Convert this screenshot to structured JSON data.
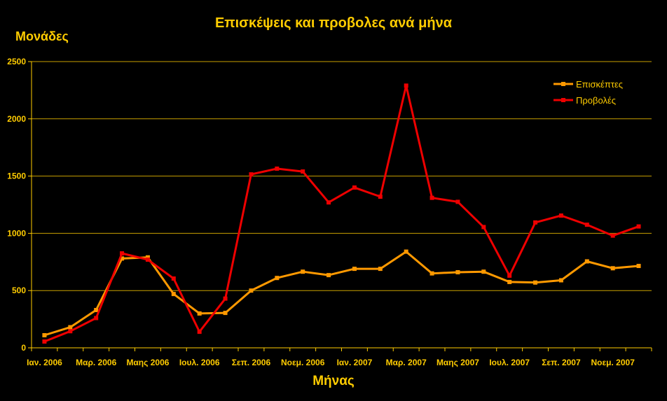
{
  "chart_data": {
    "type": "line",
    "title": "Επισκέψεις και προβολες ανά μήνα",
    "ylabel": "Μονάδες",
    "xlabel": "Μήνας",
    "ylim": [
      0,
      2500
    ],
    "yticks": [
      0,
      500,
      1000,
      1500,
      2000,
      2500
    ],
    "grid": true,
    "legend_position": "top-right",
    "x_tick_labels": [
      "Ιαν. 2006",
      "Μαρ. 2006",
      "Μαης 2006",
      "Ιουλ. 2006",
      "Σεπ. 2006",
      "Νοεμ. 2006",
      "Ιαν. 2007",
      "Μαρ. 2007",
      "Μαης 2007",
      "Ιουλ. 2007",
      "Σεπ. 2007",
      "Νοεμ. 2007"
    ],
    "point_count": 24,
    "series": [
      {
        "name": "Επισκέπτες",
        "color": "#FF9900",
        "values": [
          110,
          180,
          330,
          780,
          790,
          470,
          300,
          305,
          500,
          610,
          665,
          635,
          690,
          690,
          840,
          650,
          660,
          665,
          575,
          570,
          590,
          755,
          695,
          715
        ]
      },
      {
        "name": "Προβολές",
        "color": "#EE0000",
        "values": [
          55,
          145,
          260,
          825,
          770,
          605,
          140,
          430,
          1515,
          1565,
          1540,
          1270,
          1400,
          1320,
          2290,
          1310,
          1275,
          1055,
          630,
          1095,
          1155,
          1075,
          980,
          1060
        ]
      }
    ]
  }
}
